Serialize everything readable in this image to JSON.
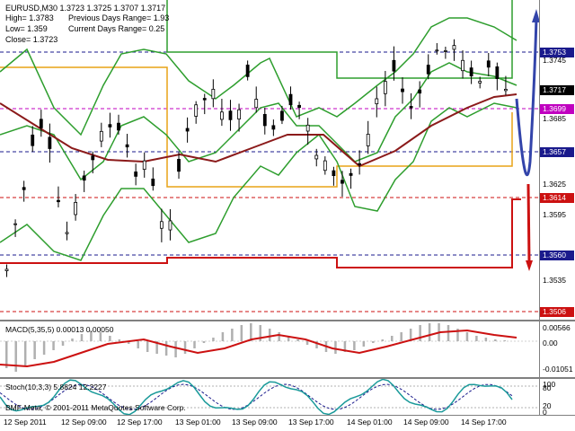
{
  "header": {
    "symbol_line": "EURUSD,M30  1.3723 1.3725 1.3707 1.3717",
    "high": "High= 1.3783",
    "prev_range": "Previous Days Range= 1.93",
    "low": "Low= 1.359",
    "current_range": "Current Days Range= 0.25",
    "close": "Close= 1.3723"
  },
  "price_axis": {
    "ticks": [
      "1.3745",
      "1.3685",
      "1.3625",
      "1.3595",
      "1.3535"
    ],
    "labels": [
      {
        "text": "1.3753",
        "color": "#1a1a8c"
      },
      {
        "text": "1.3717",
        "color": "#000000"
      },
      {
        "text": "1.3699",
        "color": "#c000c0"
      },
      {
        "text": "1.3657",
        "color": "#1a1a8c"
      },
      {
        "text": "1.3614",
        "color": "#cc1111"
      },
      {
        "text": "1.3560",
        "color": "#1a1a8c"
      },
      {
        "text": "1.3506",
        "color": "#cc1111"
      }
    ]
  },
  "macd": {
    "title": "MACD(5,35,5) 0.00013 0.00050",
    "ticks": [
      "0.00566",
      "0.00",
      "-0.01051"
    ]
  },
  "stoch": {
    "title": "Stoch(10,3,3) 5.8824 12.2227",
    "ticks": [
      "100",
      "80",
      "20",
      "0"
    ]
  },
  "copyright": "BMF-Meta, © 2001-2011 MetaQuotes Software Corp.",
  "time_axis": [
    "12 Sep 2011",
    "12 Sep 09:00",
    "12 Sep 17:00",
    "13 Sep 01:00",
    "13 Sep 09:00",
    "13 Sep 17:00",
    "14 Sep 01:00",
    "14 Sep 09:00",
    "14 Sep 17:00"
  ],
  "colors": {
    "candles": "#000000",
    "bollinger": "#2e9e2e",
    "ma_slow": "#8b1a1a",
    "prev_day_range": "#e8a317",
    "current_level": "#cc1111",
    "projection_arrow": "#3344aa",
    "macd_hist": "#b0b0b0",
    "macd_signal": "#cc1111",
    "stoch_main": "#1a9a9a",
    "stoch_signal": "#1a1a8c"
  }
}
